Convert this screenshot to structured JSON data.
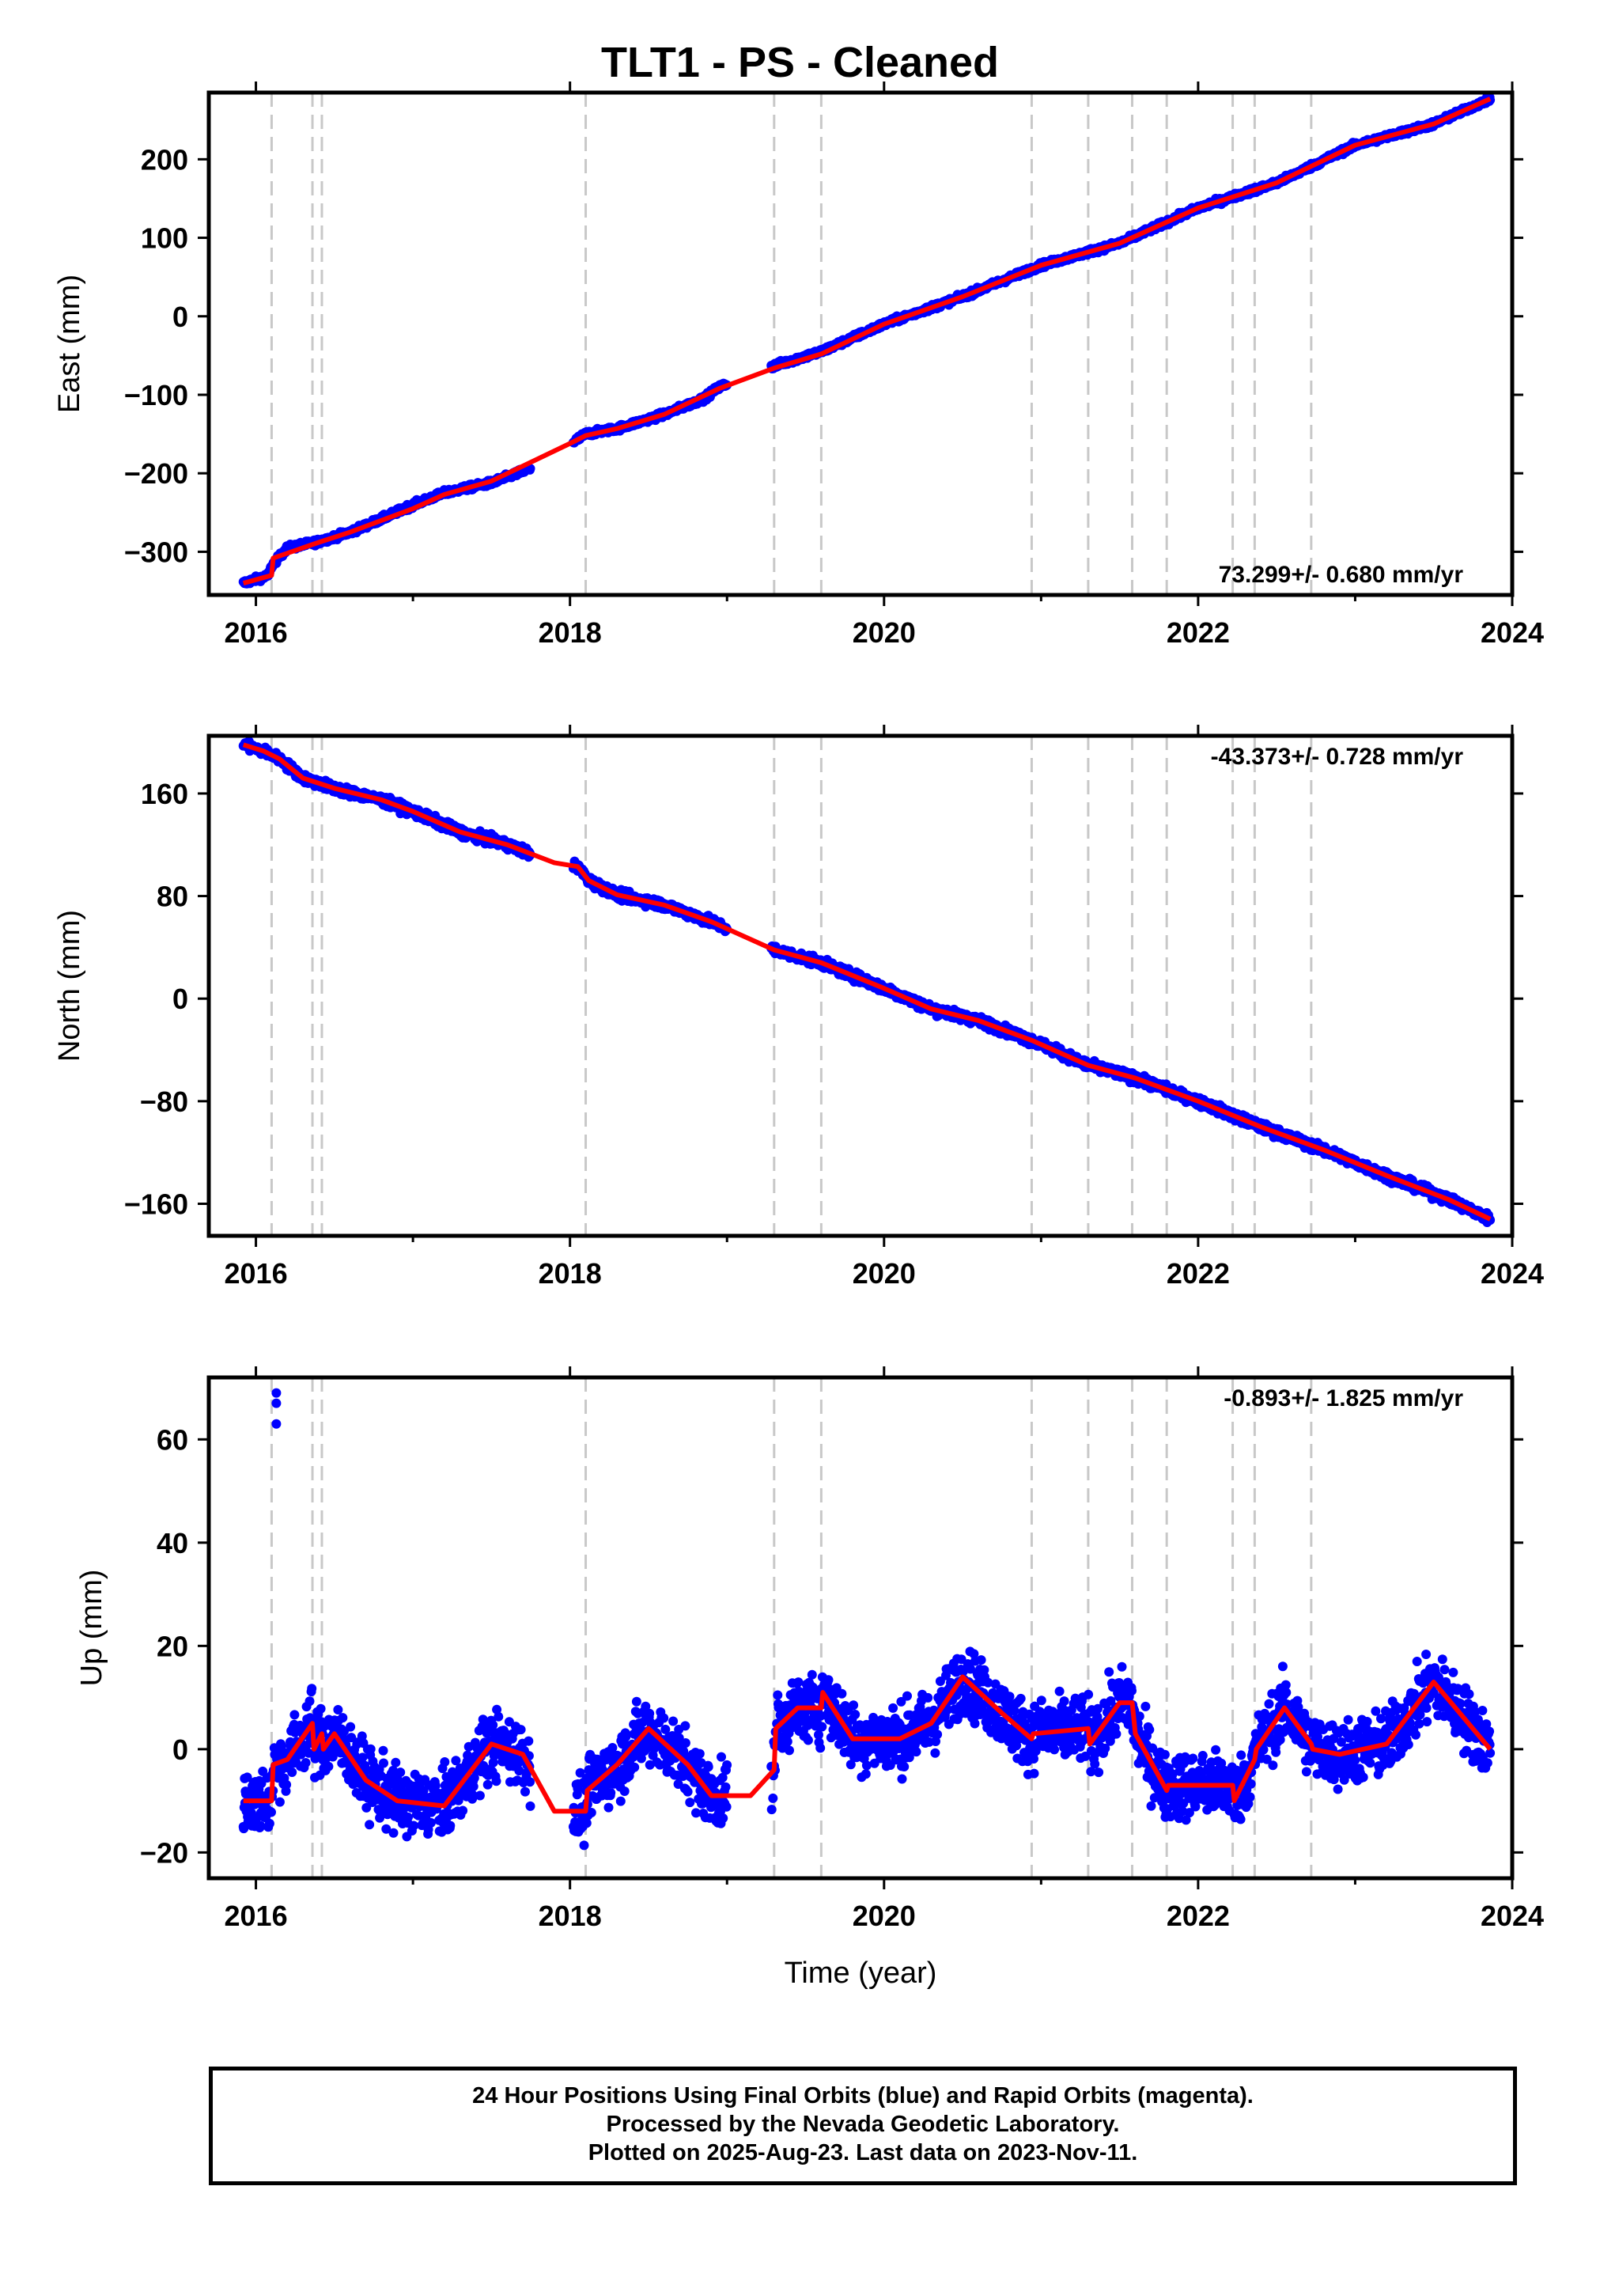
{
  "title": "TLT1  - PS - Cleaned",
  "xlabel": "Time (year)",
  "footer": {
    "line1": "24 Hour Positions Using Final Orbits (blue) and Rapid Orbits (magenta).",
    "line2": "Processed by the Nevada Geodetic Laboratory.",
    "line3": "Plotted on 2025-Aug-23. Last data on 2023-Nov-11."
  },
  "colors": {
    "points": "#0000ff",
    "model": "#ff0000",
    "events": "#c8c8c8",
    "axes": "#000000"
  },
  "events": [
    2016.1,
    2016.36,
    2016.42,
    2018.1,
    2019.3,
    2019.6,
    2020.94,
    2021.3,
    2021.58,
    2021.8,
    2022.22,
    2022.36,
    2022.72
  ],
  "chart_data": [
    {
      "type": "scatter",
      "name": "east",
      "ylabel": "East (mm)",
      "rate_label": "73.299+/- 0.680 mm/yr",
      "xlim": [
        2015.7,
        2024.0
      ],
      "ylim": [
        -355,
        285
      ],
      "xticks": [
        "2016",
        "2018",
        "2020",
        "2022",
        "2024"
      ],
      "yticks": [
        "−300",
        "−200",
        "−100",
        "0",
        "100",
        "200"
      ],
      "grid": false,
      "series": [
        {
          "marker": "points",
          "x": [
            2015.92,
            2016.0,
            2016.08,
            2016.1,
            2016.2,
            2016.4,
            2016.6,
            2016.8,
            2017.0,
            2017.2,
            2017.5,
            2017.8,
            2018.0,
            2018.1,
            2018.3,
            2018.6,
            2018.85,
            2018.95,
            2019.3,
            2019.6,
            2020.0,
            2020.5,
            2021.0,
            2021.5,
            2022.0,
            2022.5,
            2023.0,
            2023.5,
            2023.86
          ],
          "y": [
            -340,
            -335,
            -330,
            -318,
            -295,
            -287,
            -275,
            -258,
            -240,
            -225,
            -212,
            -190,
            -163,
            -150,
            -143,
            -125,
            -105,
            -90,
            -63,
            -45,
            -10,
            25,
            65,
            93,
            138,
            170,
            218,
            245,
            277
          ]
        },
        {
          "marker": "model",
          "x": [
            2015.92,
            2016.1,
            2016.11,
            2016.4,
            2016.6,
            2017.0,
            2017.2,
            2017.5,
            2018.0,
            2018.1,
            2018.3,
            2018.6,
            2018.95,
            2019.3,
            2019.6,
            2020.0,
            2020.5,
            2021.0,
            2021.5,
            2022.0,
            2022.5,
            2023.0,
            2023.5,
            2023.86
          ],
          "y": [
            -340,
            -330,
            -308,
            -288,
            -275,
            -245,
            -227,
            -210,
            -162,
            -152,
            -143,
            -125,
            -92,
            -66,
            -48,
            -10,
            25,
            65,
            93,
            138,
            170,
            218,
            245,
            277
          ]
        }
      ]
    },
    {
      "type": "scatter",
      "name": "north",
      "ylabel": "North (mm)",
      "rate_label": "-43.373+/- 0.728 mm/yr",
      "xlim": [
        2015.7,
        2024.0
      ],
      "ylim": [
        -185,
        205
      ],
      "xticks": [
        "2016",
        "2018",
        "2020",
        "2022",
        "2024"
      ],
      "yticks": [
        "−160",
        "−80",
        "0",
        "80",
        "160"
      ],
      "grid": false,
      "series": [
        {
          "marker": "points",
          "x": [
            2015.92,
            2016.05,
            2016.15,
            2016.3,
            2016.5,
            2016.8,
            2017.0,
            2017.3,
            2017.6,
            2017.9,
            2018.05,
            2018.12,
            2018.3,
            2018.6,
            2018.9,
            2019.3,
            2019.6,
            2020.0,
            2020.3,
            2020.6,
            2020.95,
            2021.3,
            2021.6,
            2022.0,
            2022.4,
            2022.8,
            2023.2,
            2023.6,
            2023.86
          ],
          "y": [
            198,
            193,
            187,
            172,
            164,
            155,
            146,
            130,
            120,
            106,
            103,
            92,
            81,
            73,
            60,
            38,
            28,
            8,
            -8,
            -17,
            -33,
            -52,
            -62,
            -80,
            -100,
            -118,
            -138,
            -157,
            -172
          ]
        },
        {
          "marker": "model",
          "x": [
            2015.92,
            2016.05,
            2016.15,
            2016.3,
            2016.5,
            2016.8,
            2017.0,
            2017.3,
            2017.6,
            2017.9,
            2018.05,
            2018.12,
            2018.3,
            2018.6,
            2018.9,
            2019.3,
            2019.6,
            2020.0,
            2020.3,
            2020.6,
            2020.95,
            2021.3,
            2021.6,
            2022.0,
            2022.4,
            2022.8,
            2023.2,
            2023.6,
            2023.86
          ],
          "y": [
            198,
            193,
            187,
            172,
            164,
            155,
            146,
            130,
            120,
            106,
            103,
            92,
            81,
            73,
            60,
            38,
            28,
            8,
            -8,
            -17,
            -33,
            -52,
            -62,
            -80,
            -100,
            -118,
            -138,
            -157,
            -172
          ]
        }
      ]
    },
    {
      "type": "scatter",
      "name": "up",
      "ylabel": "Up (mm)",
      "rate_label": "-0.893+/- 1.825 mm/yr",
      "xlim": [
        2015.7,
        2024.0
      ],
      "ylim": [
        -25,
        72
      ],
      "xticks": [
        "2016",
        "2018",
        "2020",
        "2022",
        "2024"
      ],
      "yticks": [
        "−20",
        "0",
        "20",
        "40",
        "60"
      ],
      "grid": false,
      "outliers": {
        "x": [
          2016.13,
          2016.13,
          2016.13
        ],
        "y": [
          69,
          67,
          63
        ]
      },
      "series": [
        {
          "marker": "model",
          "x": [
            2015.92,
            2016.1,
            2016.11,
            2016.2,
            2016.36,
            2016.37,
            2016.42,
            2016.43,
            2016.5,
            2016.7,
            2016.9,
            2017.2,
            2017.5,
            2017.7,
            2017.9,
            2018.1,
            2018.11,
            2018.3,
            2018.5,
            2018.75,
            2018.9,
            2019.15,
            2019.3,
            2019.31,
            2019.45,
            2019.6,
            2019.61,
            2019.8,
            2020.1,
            2020.3,
            2020.5,
            2020.75,
            2020.94,
            2020.95,
            2021.3,
            2021.31,
            2021.5,
            2021.58,
            2021.6,
            2021.8,
            2021.81,
            2022.22,
            2022.23,
            2022.36,
            2022.37,
            2022.55,
            2022.72,
            2022.73,
            2022.9,
            2023.2,
            2023.5,
            2023.86
          ],
          "y": [
            -10,
            -10,
            -3,
            -2,
            5,
            0,
            3,
            0,
            3,
            -6,
            -10,
            -11,
            1,
            -1,
            -12,
            -12,
            -8,
            -3,
            4,
            -3,
            -9,
            -9,
            -4,
            4,
            8,
            8,
            11,
            2,
            2,
            5,
            14,
            7,
            2,
            3,
            4,
            1,
            9,
            9,
            3,
            -8,
            -7,
            -7,
            -10,
            -2,
            0,
            8,
            1,
            0,
            -1,
            1,
            13,
            0
          ]
        }
      ]
    }
  ]
}
